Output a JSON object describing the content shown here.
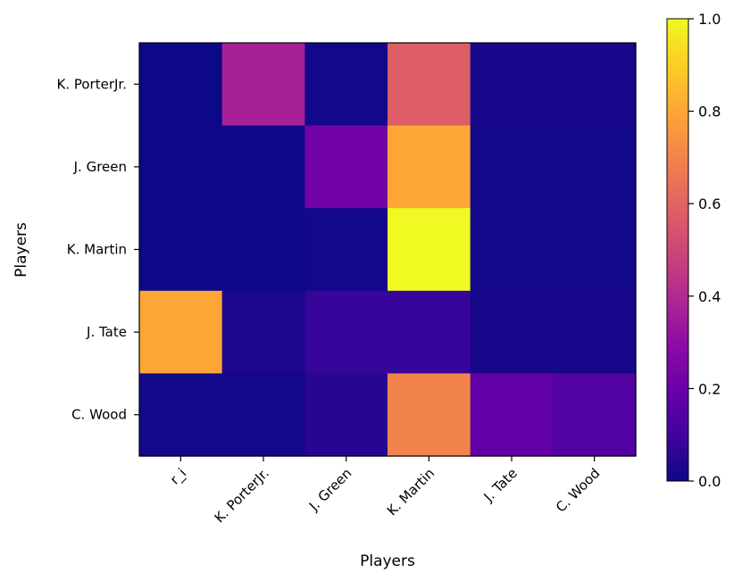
{
  "chart_data": {
    "type": "heatmap",
    "title": "",
    "xlabel": "Players",
    "ylabel": "Players",
    "x_categories": [
      "r_i",
      "K. PorterJr.",
      "J. Green",
      "K. Martin",
      "J. Tate",
      "C. Wood"
    ],
    "y_categories": [
      "K. PorterJr.",
      "J. Green",
      "K. Martin",
      "J. Tate",
      "C. Wood"
    ],
    "values": [
      [
        0.0,
        0.37,
        0.01,
        0.58,
        0.02,
        0.02
      ],
      [
        0.0,
        0.0,
        0.22,
        0.8,
        0.01,
        0.01
      ],
      [
        0.0,
        0.0,
        0.01,
        1.0,
        0.01,
        0.01
      ],
      [
        0.8,
        0.03,
        0.08,
        0.08,
        0.02,
        0.02
      ],
      [
        0.01,
        0.01,
        0.05,
        0.7,
        0.18,
        0.14
      ]
    ],
    "colormap": "plasma",
    "vmin": 0.0,
    "vmax": 1.0,
    "colorbar_ticks": [
      {
        "value": 0.0,
        "label": "0.0"
      },
      {
        "value": 0.2,
        "label": "0.2"
      },
      {
        "value": 0.4,
        "label": "0.4"
      },
      {
        "value": 0.6,
        "label": "0.6"
      },
      {
        "value": 0.8,
        "label": "0.8"
      },
      {
        "value": 1.0,
        "label": "1.0"
      }
    ],
    "x_tick_rotation_deg": 45,
    "grid": false
  }
}
